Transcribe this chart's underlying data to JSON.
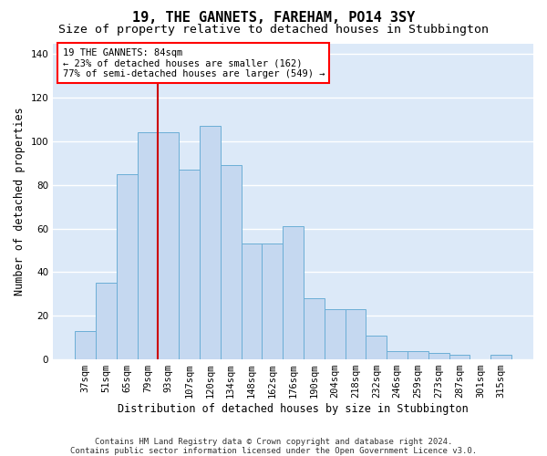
{
  "title": "19, THE GANNETS, FAREHAM, PO14 3SY",
  "subtitle": "Size of property relative to detached houses in Stubbington",
  "xlabel": "Distribution of detached houses by size in Stubbington",
  "ylabel": "Number of detached properties",
  "footer_line1": "Contains HM Land Registry data © Crown copyright and database right 2024.",
  "footer_line2": "Contains public sector information licensed under the Open Government Licence v3.0.",
  "bar_labels": [
    "37sqm",
    "51sqm",
    "65sqm",
    "79sqm",
    "93sqm",
    "107sqm",
    "120sqm",
    "134sqm",
    "148sqm",
    "162sqm",
    "176sqm",
    "190sqm",
    "204sqm",
    "218sqm",
    "232sqm",
    "246sqm",
    "259sqm",
    "273sqm",
    "287sqm",
    "301sqm",
    "315sqm"
  ],
  "bar_values": [
    13,
    35,
    85,
    104,
    104,
    87,
    107,
    89,
    53,
    53,
    61,
    28,
    23,
    23,
    11,
    4,
    4,
    3,
    2,
    0,
    2
  ],
  "bar_color": "#c5d8f0",
  "bar_edge_color": "#6baed6",
  "vline_pos": 3.5,
  "vline_color": "#cc0000",
  "annotation_text": "19 THE GANNETS: 84sqm\n← 23% of detached houses are smaller (162)\n77% of semi-detached houses are larger (549) →",
  "bg_color": "#dce9f8",
  "grid_color": "#ffffff",
  "ylim": [
    0,
    145
  ],
  "yticks": [
    0,
    20,
    40,
    60,
    80,
    100,
    120,
    140
  ],
  "title_fontsize": 11,
  "subtitle_fontsize": 9.5,
  "axis_label_fontsize": 8.5,
  "tick_fontsize": 7.5,
  "annot_fontsize": 7.5,
  "footer_fontsize": 6.5
}
